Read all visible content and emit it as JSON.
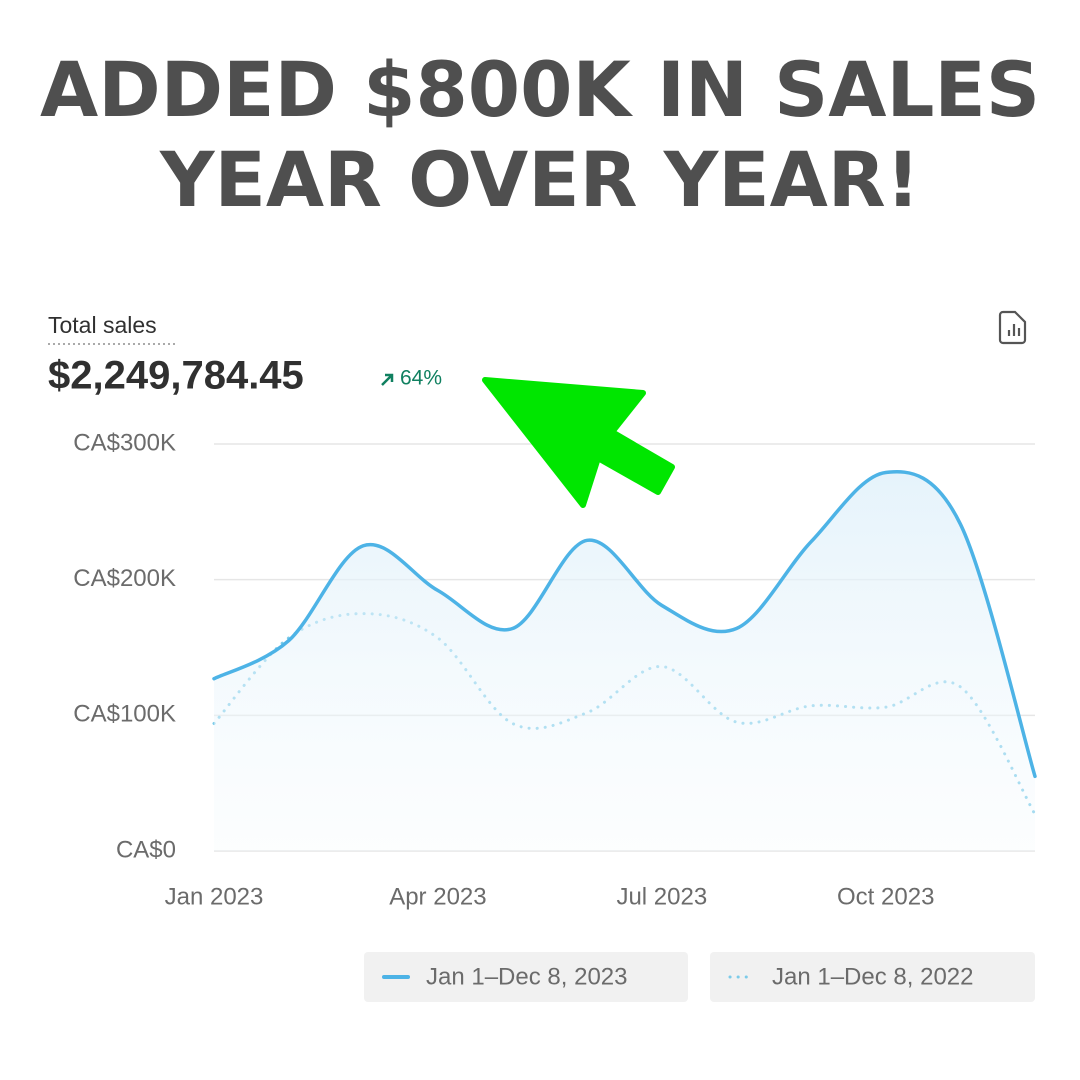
{
  "headline": [
    "ADDED $800K IN SALES",
    "YEAR OVER YEAR!"
  ],
  "summary": {
    "label": "Total sales",
    "total": "$2,249,784.45",
    "change": "64%"
  },
  "chart_data": {
    "type": "line",
    "categories": [
      "Jan 2023",
      null,
      null,
      "Apr 2023",
      null,
      null,
      "Jul 2023",
      null,
      null,
      "Oct 2023",
      null,
      null
    ],
    "series": [
      {
        "name": "Jan 1–Dec 8, 2023",
        "color": "#4db3e6",
        "style": "solid",
        "values": [
          127000,
          155000,
          225000,
          192000,
          164000,
          229000,
          181000,
          164000,
          228000,
          279000,
          241000,
          55000
        ]
      },
      {
        "name": "Jan 1–Dec 8, 2022",
        "color": "#7ccbe9",
        "style": "dotted",
        "values": [
          94000,
          157000,
          175000,
          157000,
          94000,
          102000,
          136000,
          95000,
          107000,
          106000,
          121000,
          27000
        ]
      }
    ],
    "ylim": [
      0,
      300000
    ],
    "yticks": [
      {
        "value": 0,
        "label": "CA$0"
      },
      {
        "value": 100000,
        "label": "CA$100K"
      },
      {
        "value": 200000,
        "label": "CA$200K"
      },
      {
        "value": 300000,
        "label": "CA$300K"
      }
    ],
    "grid": true
  }
}
